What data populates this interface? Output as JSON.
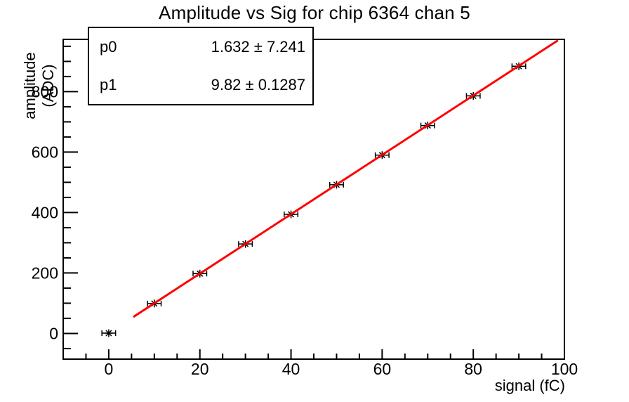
{
  "chart_data": {
    "type": "scatter",
    "title": "Amplitude vs Sig for chip 6364 chan 5",
    "xlabel": "signal (fC)",
    "ylabel": "amplitude (ADC)",
    "xlim": [
      -10,
      100
    ],
    "ylim": [
      -85,
      973
    ],
    "xticks": [
      0,
      20,
      40,
      60,
      80,
      100
    ],
    "yticks": [
      0,
      200,
      400,
      600,
      800
    ],
    "x_minor_step": 5,
    "y_minor_step": 50,
    "grid": false,
    "legend": false,
    "marker_style": "asterisk-with-x-error-bars",
    "marker_color": "#000000",
    "axis_color": "#000000",
    "points": {
      "x": [
        0,
        10,
        20,
        30,
        40,
        50,
        60,
        70,
        80,
        90
      ],
      "y": [
        1,
        99,
        198,
        296,
        394,
        492,
        590,
        688,
        786,
        884
      ],
      "xerr": 1.5
    },
    "fit": {
      "type": "linear",
      "p0": 1.632,
      "p1": 9.82,
      "x_start": 5.4,
      "x_end": 98.6,
      "color": "#ff0000"
    },
    "stats_box": {
      "rows": [
        {
          "label": "p0",
          "value": "1.632 ± 7.241"
        },
        {
          "label": "p1",
          "value": "9.82 ± 0.1287"
        }
      ]
    }
  }
}
